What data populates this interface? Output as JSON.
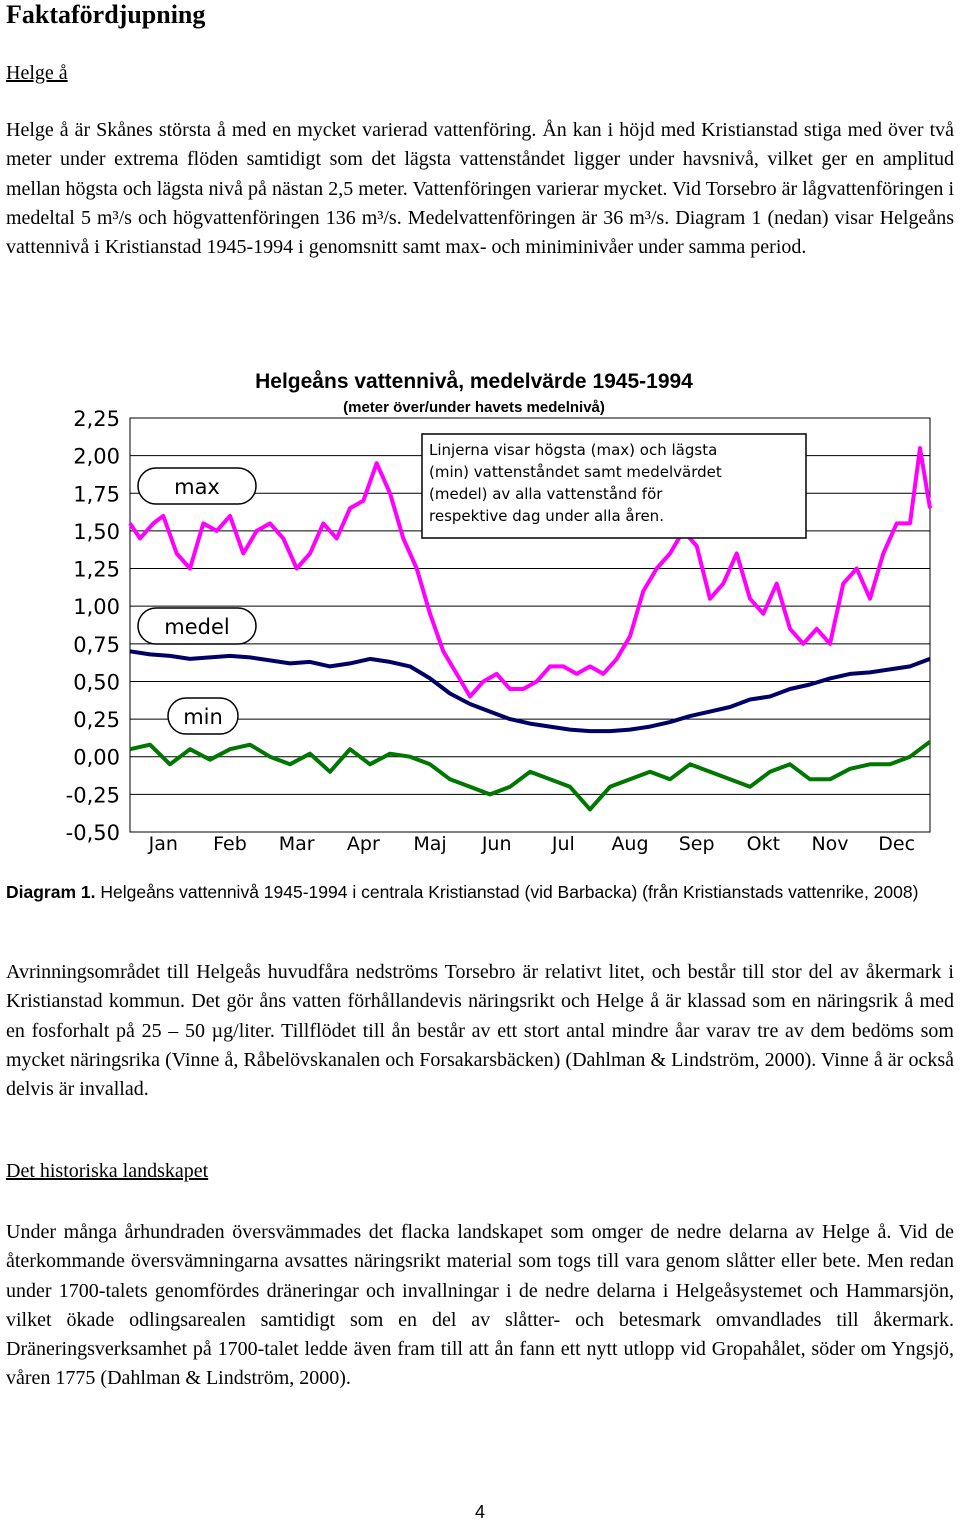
{
  "heading": "Faktafördjupning",
  "section1_title": "Helge å",
  "para1": "Helge å är Skånes största å med en mycket varierad vattenföring. Ån kan i höjd med Kristianstad stiga med över två meter under extrema flöden samtidigt som det lägsta vattenståndet ligger under havsnivå, vilket ger en amplitud mellan högsta och lägsta nivå på nästan 2,5 meter. Vattenföringen varierar mycket. Vid Torsebro är lågvattenföringen i medeltal 5 m³/s och högvattenföringen 136 m³/s. Medelvattenföringen är 36 m³/s. Diagram 1 (nedan) visar Helgeåns vattennivå i Kristianstad 1945-1994 i genomsnitt samt max- och miniminivåer under samma period.",
  "chart": {
    "title": "Helgeåns vattennivå, medelvärde 1945-1994",
    "subtitle": "(meter över/under havets medelnivå)",
    "legend_lines": [
      "Linjerna visar högsta (max) och lägsta",
      "(min) vattenståndet samt medelvärdet",
      "(medel) av alla vattenstånd för",
      "respektive dag under alla åren."
    ],
    "label_max": "max",
    "label_medel": "medel",
    "label_min": "min"
  },
  "chart_data": {
    "type": "line",
    "title": "Helgeåns vattennivå, medelvärde 1945-1994",
    "subtitle": "(meter över/under havets medelnivå)",
    "ylabel": "",
    "xlabel": "",
    "ylim": [
      -0.5,
      2.25
    ],
    "yticks": [
      "2,25",
      "2,00",
      "1,75",
      "1,50",
      "1,25",
      "1,00",
      "0,75",
      "0,50",
      "0,25",
      "0,00",
      "-0,25",
      "-0,50"
    ],
    "categories": [
      "Jan",
      "Feb",
      "Mar",
      "Apr",
      "Maj",
      "Jun",
      "Jul",
      "Aug",
      "Sep",
      "Okt",
      "Nov",
      "Dec"
    ],
    "colors": {
      "max": "#ff00ff",
      "medel": "#000066",
      "min": "#007700"
    },
    "series": [
      {
        "name": "max",
        "x": [
          0,
          0.15,
          0.35,
          0.5,
          0.7,
          0.9,
          1.1,
          1.3,
          1.5,
          1.7,
          1.9,
          2.1,
          2.3,
          2.5,
          2.7,
          2.9,
          3.1,
          3.3,
          3.5,
          3.7,
          3.9,
          4.1,
          4.3,
          4.5,
          4.7,
          4.9,
          5.1,
          5.3,
          5.5,
          5.7,
          5.9,
          6.1,
          6.3,
          6.5,
          6.7,
          6.9,
          7.1,
          7.3,
          7.5,
          7.7,
          7.9,
          8.1,
          8.3,
          8.5,
          8.7,
          8.9,
          9.1,
          9.3,
          9.5,
          9.7,
          9.9,
          10.1,
          10.3,
          10.5,
          10.7,
          10.9,
          11.1,
          11.3,
          11.5,
          11.7,
          11.85,
          12
        ],
        "values": [
          1.55,
          1.45,
          1.55,
          1.6,
          1.35,
          1.25,
          1.55,
          1.5,
          1.6,
          1.35,
          1.5,
          1.55,
          1.45,
          1.25,
          1.35,
          1.55,
          1.45,
          1.65,
          1.7,
          1.95,
          1.75,
          1.45,
          1.25,
          0.95,
          0.7,
          0.55,
          0.4,
          0.5,
          0.55,
          0.45,
          0.45,
          0.5,
          0.6,
          0.6,
          0.55,
          0.6,
          0.55,
          0.65,
          0.8,
          1.1,
          1.25,
          1.35,
          1.5,
          1.4,
          1.05,
          1.15,
          1.35,
          1.05,
          0.95,
          1.15,
          0.85,
          0.75,
          0.85,
          0.75,
          1.15,
          1.25,
          1.05,
          1.35,
          1.55,
          1.55,
          2.05,
          1.65
        ]
      },
      {
        "name": "medel",
        "x": [
          0,
          0.3,
          0.6,
          0.9,
          1.2,
          1.5,
          1.8,
          2.1,
          2.4,
          2.7,
          3.0,
          3.3,
          3.6,
          3.9,
          4.2,
          4.5,
          4.8,
          5.1,
          5.4,
          5.7,
          6.0,
          6.3,
          6.6,
          6.9,
          7.2,
          7.5,
          7.8,
          8.1,
          8.4,
          8.7,
          9.0,
          9.3,
          9.6,
          9.9,
          10.2,
          10.5,
          10.8,
          11.1,
          11.4,
          11.7,
          12
        ],
        "values": [
          0.7,
          0.68,
          0.67,
          0.65,
          0.66,
          0.67,
          0.66,
          0.64,
          0.62,
          0.63,
          0.6,
          0.62,
          0.65,
          0.63,
          0.6,
          0.52,
          0.42,
          0.35,
          0.3,
          0.25,
          0.22,
          0.2,
          0.18,
          0.17,
          0.17,
          0.18,
          0.2,
          0.23,
          0.27,
          0.3,
          0.33,
          0.38,
          0.4,
          0.45,
          0.48,
          0.52,
          0.55,
          0.56,
          0.58,
          0.6,
          0.65
        ]
      },
      {
        "name": "min",
        "x": [
          0,
          0.3,
          0.6,
          0.9,
          1.2,
          1.5,
          1.8,
          2.1,
          2.4,
          2.7,
          3.0,
          3.3,
          3.6,
          3.9,
          4.2,
          4.5,
          4.8,
          5.1,
          5.4,
          5.7,
          6.0,
          6.3,
          6.6,
          6.9,
          7.2,
          7.5,
          7.8,
          8.1,
          8.4,
          8.7,
          9.0,
          9.3,
          9.6,
          9.9,
          10.2,
          10.5,
          10.8,
          11.1,
          11.4,
          11.7,
          12
        ],
        "values": [
          0.05,
          0.08,
          -0.05,
          0.05,
          -0.02,
          0.05,
          0.08,
          0.0,
          -0.05,
          0.02,
          -0.1,
          0.05,
          -0.05,
          0.02,
          0.0,
          -0.05,
          -0.15,
          -0.2,
          -0.25,
          -0.2,
          -0.1,
          -0.15,
          -0.2,
          -0.35,
          -0.2,
          -0.15,
          -0.1,
          -0.15,
          -0.05,
          -0.1,
          -0.15,
          -0.2,
          -0.1,
          -0.05,
          -0.15,
          -0.15,
          -0.08,
          -0.05,
          -0.05,
          0.0,
          0.1
        ]
      }
    ]
  },
  "caption_label": "Diagram 1.",
  "caption_text": " Helgeåns vattennivå 1945-1994 i centrala Kristianstad (vid Barbacka) (från Kristianstads vattenrike, 2008)",
  "para2": "Avrinningsområdet till Helgeås huvudfåra nedströms Torsebro är relativt litet, och består till stor del av åkermark i Kristianstad kommun. Det gör åns vatten förhållandevis näringsrikt och Helge å är klassad som en näringsrik å med en fosforhalt på 25 – 50 µg/liter. Tillflödet till ån består av ett stort antal mindre åar varav tre av dem bedöms som mycket näringsrika (Vinne å, Råbelövskanalen och Forsakarsbäcken) (Dahlman & Lindström, 2000). Vinne å är också delvis är invallad.",
  "section2_title": "Det historiska landskapet",
  "para3": "Under många århundraden översvämmades det flacka landskapet som omger de nedre delarna av Helge å. Vid de återkommande översvämningarna avsattes näringsrikt material som togs till vara genom slåtter eller bete. Men redan under 1700-talets genomfördes dräneringar och invallningar i de nedre delarna i Helgeåsystemet och Hammarsjön, vilket ökade odlingsarealen samtidigt som en del av slåtter- och betesmark omvandlades till åkermark. Dräneringsverksamhet på 1700-talet ledde även fram till att ån fann ett nytt utlopp vid Gropahålet, söder om Yngsjö, våren 1775 (Dahlman & Lindström, 2000).",
  "page_number": "4"
}
